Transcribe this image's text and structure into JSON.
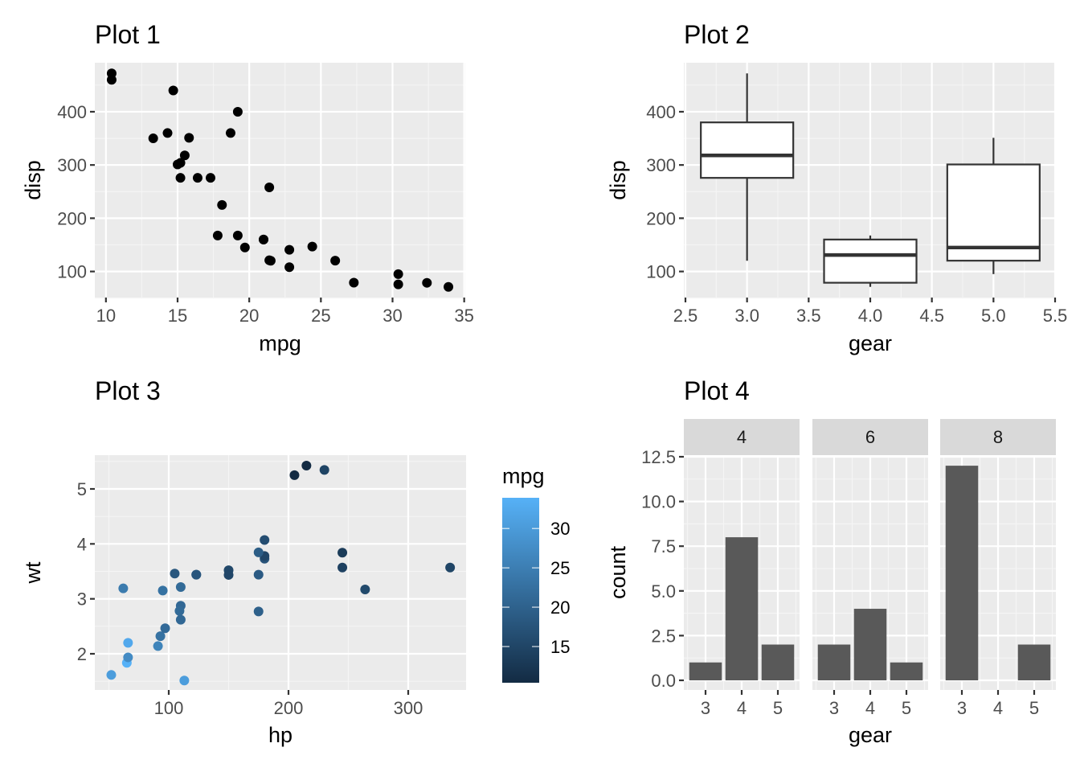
{
  "colors": {
    "panel_bg": "#EBEBEB",
    "grid_major": "#FFFFFF",
    "grid_minor": "#F5F5F5",
    "point": "#000000",
    "box_line": "#333333",
    "box_fill": "#FFFFFF",
    "bar_fill": "#595959",
    "strip_bg": "#D9D9D9",
    "tick": "#333333",
    "gradient_low": "#132B43",
    "gradient_high": "#56B1F7"
  },
  "chart_data": [
    {
      "id": "plot1",
      "type": "scatter",
      "title": "Plot 1",
      "xlabel": "mpg",
      "ylabel": "disp",
      "xlim": [
        9.225,
        35.075
      ],
      "ylim": [
        51.05,
        492.05
      ],
      "xticks": [
        10,
        15,
        20,
        25,
        30,
        35
      ],
      "yticks": [
        100,
        200,
        300,
        400
      ],
      "grid": true,
      "points": [
        [
          21.0,
          160
        ],
        [
          21.0,
          160
        ],
        [
          22.8,
          108
        ],
        [
          21.4,
          258
        ],
        [
          18.7,
          360
        ],
        [
          18.1,
          225
        ],
        [
          14.3,
          360
        ],
        [
          24.4,
          146.7
        ],
        [
          22.8,
          140.8
        ],
        [
          19.2,
          167.6
        ],
        [
          17.8,
          167.6
        ],
        [
          16.4,
          275.8
        ],
        [
          17.3,
          275.8
        ],
        [
          15.2,
          275.8
        ],
        [
          10.4,
          472
        ],
        [
          10.4,
          460
        ],
        [
          14.7,
          440
        ],
        [
          32.4,
          78.7
        ],
        [
          30.4,
          75.7
        ],
        [
          33.9,
          71.1
        ],
        [
          21.5,
          120.1
        ],
        [
          15.5,
          318
        ],
        [
          15.2,
          304
        ],
        [
          13.3,
          350
        ],
        [
          19.2,
          400
        ],
        [
          27.3,
          79
        ],
        [
          26.0,
          120.3
        ],
        [
          30.4,
          95.1
        ],
        [
          15.8,
          351
        ],
        [
          19.7,
          145
        ],
        [
          15.0,
          301
        ],
        [
          21.4,
          121
        ]
      ]
    },
    {
      "id": "plot2",
      "type": "boxplot",
      "title": "Plot 2",
      "xlabel": "gear",
      "ylabel": "disp",
      "xlim": [
        2.5,
        5.5
      ],
      "ylim": [
        51.05,
        492.05
      ],
      "xticks": [
        "2.5",
        "3.0",
        "3.5",
        "4.0",
        "4.5",
        "5.0",
        "5.5"
      ],
      "yticks": [
        100,
        200,
        300,
        400
      ],
      "grid": true,
      "boxes": [
        {
          "x": 3,
          "lower_whisker": 120.1,
          "q1": 275.8,
          "median": 318,
          "q3": 380,
          "upper_whisker": 472
        },
        {
          "x": 4,
          "lower_whisker": 71.1,
          "q1": 78.85,
          "median": 130.9,
          "q3": 160,
          "upper_whisker": 167.6
        },
        {
          "x": 5,
          "lower_whisker": 95.1,
          "q1": 120.3,
          "median": 145,
          "q3": 301,
          "upper_whisker": 351
        }
      ]
    },
    {
      "id": "plot3",
      "type": "scatter",
      "title": "Plot 3",
      "xlabel": "hp",
      "ylabel": "wt",
      "xlim": [
        37.85,
        349.15
      ],
      "ylim": [
        1.31,
        5.62
      ],
      "xticks": [
        100,
        200,
        300
      ],
      "yticks": [
        2,
        3,
        4,
        5
      ],
      "grid": true,
      "color_legend": {
        "title": "mpg",
        "range": [
          10.4,
          33.9
        ],
        "ticks": [
          15,
          20,
          25,
          30
        ],
        "position": "right"
      },
      "points": [
        [
          110,
          2.62,
          21.0
        ],
        [
          110,
          2.875,
          21.0
        ],
        [
          93,
          2.32,
          22.8
        ],
        [
          110,
          3.215,
          21.4
        ],
        [
          175,
          3.44,
          18.7
        ],
        [
          105,
          3.46,
          18.1
        ],
        [
          245,
          3.57,
          14.3
        ],
        [
          62,
          3.19,
          24.4
        ],
        [
          95,
          3.15,
          22.8
        ],
        [
          123,
          3.44,
          19.2
        ],
        [
          123,
          3.44,
          17.8
        ],
        [
          180,
          4.07,
          16.4
        ],
        [
          180,
          3.73,
          17.3
        ],
        [
          180,
          3.78,
          15.2
        ],
        [
          205,
          5.25,
          10.4
        ],
        [
          215,
          5.424,
          10.4
        ],
        [
          230,
          5.345,
          14.7
        ],
        [
          66,
          2.2,
          32.4
        ],
        [
          52,
          1.615,
          30.4
        ],
        [
          65,
          1.835,
          33.9
        ],
        [
          97,
          2.465,
          21.5
        ],
        [
          150,
          3.52,
          15.5
        ],
        [
          150,
          3.435,
          15.2
        ],
        [
          245,
          3.84,
          13.3
        ],
        [
          175,
          3.845,
          19.2
        ],
        [
          66,
          1.935,
          27.3
        ],
        [
          91,
          2.14,
          26.0
        ],
        [
          113,
          1.513,
          30.4
        ],
        [
          264,
          3.17,
          15.8
        ],
        [
          175,
          2.77,
          19.7
        ],
        [
          335,
          3.57,
          15.0
        ],
        [
          109,
          2.78,
          21.4
        ]
      ]
    },
    {
      "id": "plot4",
      "type": "bar",
      "title": "Plot 4",
      "xlabel": "gear",
      "ylabel": "count",
      "ylim": [
        -0.6,
        13.2
      ],
      "yticks": [
        "0.0",
        "2.5",
        "5.0",
        "7.5",
        "10.0",
        "12.5"
      ],
      "categories": [
        "3",
        "4",
        "5"
      ],
      "grid": true,
      "facets": [
        {
          "label": "4",
          "values": [
            1,
            8,
            2
          ]
        },
        {
          "label": "6",
          "values": [
            2,
            4,
            1
          ]
        },
        {
          "label": "8",
          "values": [
            12,
            0,
            2
          ]
        }
      ]
    }
  ]
}
